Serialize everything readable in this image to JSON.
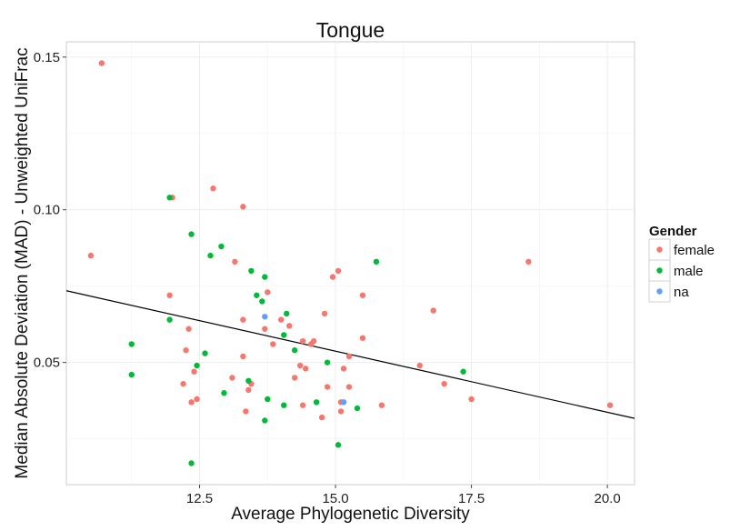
{
  "chart_data": {
    "type": "scatter",
    "title": "Tongue",
    "xlabel": "Average Phylogenetic Diversity",
    "ylabel": "Median Absolute Deviation (MAD) - Unweighted UniFrac",
    "xlim": [
      10.05,
      20.5
    ],
    "ylim": [
      0.01,
      0.155
    ],
    "x_ticks": [
      12.5,
      15.0,
      17.5,
      20.0
    ],
    "x_tick_labels": [
      "12.5",
      "15.0",
      "17.5",
      "20.0"
    ],
    "y_ticks": [
      0.05,
      0.1,
      0.15
    ],
    "y_tick_labels": [
      "0.05",
      "0.10",
      "0.15"
    ],
    "grid": true,
    "legend": {
      "title": "Gender",
      "position": "right"
    },
    "trend_line": {
      "x": [
        10.05,
        20.5
      ],
      "y": [
        0.0735,
        0.0317
      ]
    },
    "series": [
      {
        "name": "female",
        "color": "#f8766d",
        "points": [
          [
            10.7,
            0.148
          ],
          [
            10.5,
            0.085
          ],
          [
            12.0,
            0.104
          ],
          [
            11.95,
            0.072
          ],
          [
            12.75,
            0.107
          ],
          [
            13.3,
            0.101
          ],
          [
            13.15,
            0.083
          ],
          [
            13.75,
            0.073
          ],
          [
            12.3,
            0.061
          ],
          [
            12.25,
            0.054
          ],
          [
            12.2,
            0.043
          ],
          [
            12.4,
            0.047
          ],
          [
            12.35,
            0.037
          ],
          [
            12.45,
            0.038
          ],
          [
            13.3,
            0.064
          ],
          [
            13.7,
            0.061
          ],
          [
            13.85,
            0.056
          ],
          [
            14.0,
            0.064
          ],
          [
            14.15,
            0.062
          ],
          [
            13.3,
            0.052
          ],
          [
            13.1,
            0.045
          ],
          [
            13.45,
            0.043
          ],
          [
            13.4,
            0.041
          ],
          [
            13.35,
            0.034
          ],
          [
            14.25,
            0.045
          ],
          [
            14.35,
            0.049
          ],
          [
            14.45,
            0.048
          ],
          [
            14.4,
            0.057
          ],
          [
            14.55,
            0.056
          ],
          [
            14.6,
            0.057
          ],
          [
            14.8,
            0.066
          ],
          [
            14.95,
            0.078
          ],
          [
            15.05,
            0.08
          ],
          [
            14.4,
            0.036
          ],
          [
            14.85,
            0.042
          ],
          [
            14.75,
            0.032
          ],
          [
            15.1,
            0.037
          ],
          [
            15.1,
            0.034
          ],
          [
            15.15,
            0.048
          ],
          [
            15.25,
            0.052
          ],
          [
            15.25,
            0.042
          ],
          [
            15.5,
            0.072
          ],
          [
            15.5,
            0.058
          ],
          [
            15.85,
            0.036
          ],
          [
            16.55,
            0.049
          ],
          [
            16.8,
            0.067
          ],
          [
            17.0,
            0.043
          ],
          [
            17.5,
            0.038
          ],
          [
            18.55,
            0.083
          ],
          [
            20.05,
            0.036
          ]
        ]
      },
      {
        "name": "male",
        "color": "#00ba38",
        "points": [
          [
            11.95,
            0.104
          ],
          [
            12.35,
            0.092
          ],
          [
            12.9,
            0.088
          ],
          [
            12.7,
            0.085
          ],
          [
            13.45,
            0.08
          ],
          [
            13.7,
            0.078
          ],
          [
            13.55,
            0.072
          ],
          [
            13.65,
            0.07
          ],
          [
            14.1,
            0.066
          ],
          [
            14.05,
            0.059
          ],
          [
            11.95,
            0.064
          ],
          [
            11.25,
            0.056
          ],
          [
            11.25,
            0.046
          ],
          [
            12.45,
            0.049
          ],
          [
            12.6,
            0.053
          ],
          [
            12.95,
            0.04
          ],
          [
            13.4,
            0.044
          ],
          [
            13.75,
            0.038
          ],
          [
            14.05,
            0.036
          ],
          [
            13.7,
            0.031
          ],
          [
            14.25,
            0.054
          ],
          [
            14.85,
            0.05
          ],
          [
            14.65,
            0.037
          ],
          [
            15.4,
            0.035
          ],
          [
            15.05,
            0.023
          ],
          [
            15.75,
            0.083
          ],
          [
            17.35,
            0.047
          ],
          [
            12.35,
            0.017
          ]
        ]
      },
      {
        "name": "na",
        "color": "#619cff",
        "points": [
          [
            13.7,
            0.065
          ],
          [
            15.15,
            0.037
          ]
        ]
      }
    ]
  }
}
